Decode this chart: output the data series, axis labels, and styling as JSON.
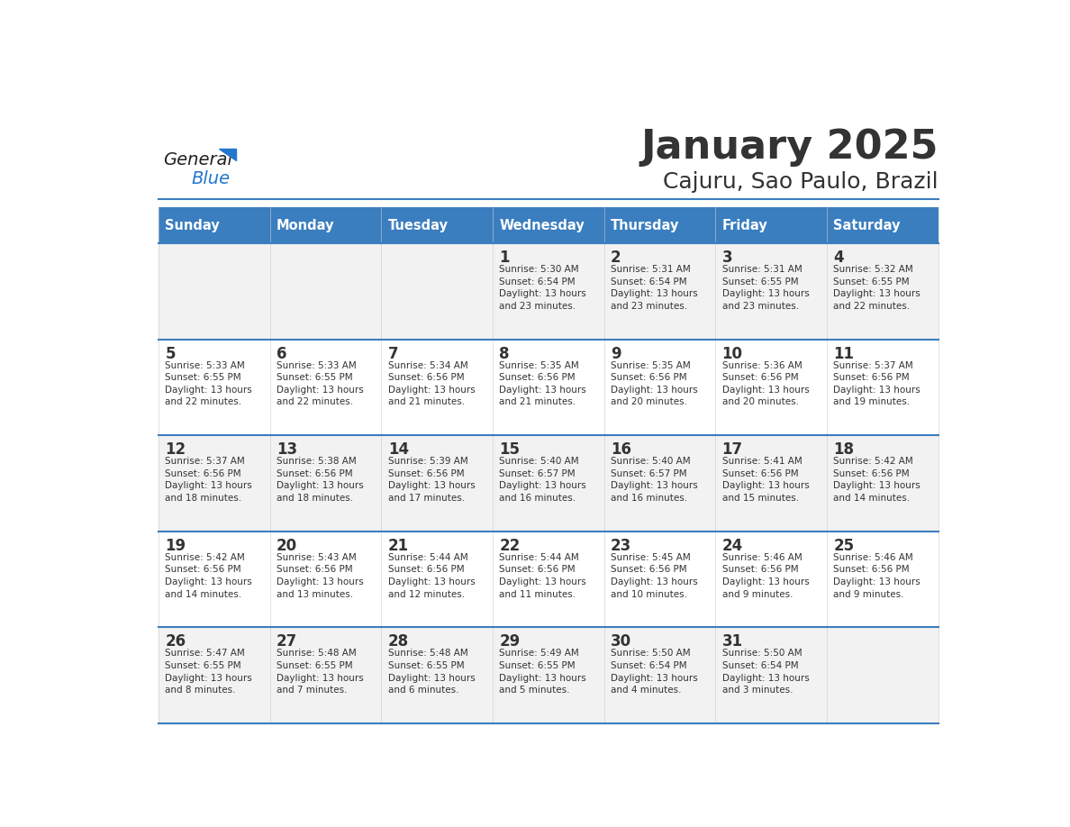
{
  "title": "January 2025",
  "subtitle": "Cajuru, Sao Paulo, Brazil",
  "header_bg": "#3a7ebf",
  "header_text_color": "#ffffff",
  "row_bg_odd": "#f2f2f2",
  "row_bg_even": "#ffffff",
  "border_color": "#3a7ebf",
  "text_color": "#333333",
  "days_of_week": [
    "Sunday",
    "Monday",
    "Tuesday",
    "Wednesday",
    "Thursday",
    "Friday",
    "Saturday"
  ],
  "calendar": [
    [
      {
        "day": "",
        "info": ""
      },
      {
        "day": "",
        "info": ""
      },
      {
        "day": "",
        "info": ""
      },
      {
        "day": "1",
        "info": "Sunrise: 5:30 AM\nSunset: 6:54 PM\nDaylight: 13 hours\nand 23 minutes."
      },
      {
        "day": "2",
        "info": "Sunrise: 5:31 AM\nSunset: 6:54 PM\nDaylight: 13 hours\nand 23 minutes."
      },
      {
        "day": "3",
        "info": "Sunrise: 5:31 AM\nSunset: 6:55 PM\nDaylight: 13 hours\nand 23 minutes."
      },
      {
        "day": "4",
        "info": "Sunrise: 5:32 AM\nSunset: 6:55 PM\nDaylight: 13 hours\nand 22 minutes."
      }
    ],
    [
      {
        "day": "5",
        "info": "Sunrise: 5:33 AM\nSunset: 6:55 PM\nDaylight: 13 hours\nand 22 minutes."
      },
      {
        "day": "6",
        "info": "Sunrise: 5:33 AM\nSunset: 6:55 PM\nDaylight: 13 hours\nand 22 minutes."
      },
      {
        "day": "7",
        "info": "Sunrise: 5:34 AM\nSunset: 6:56 PM\nDaylight: 13 hours\nand 21 minutes."
      },
      {
        "day": "8",
        "info": "Sunrise: 5:35 AM\nSunset: 6:56 PM\nDaylight: 13 hours\nand 21 minutes."
      },
      {
        "day": "9",
        "info": "Sunrise: 5:35 AM\nSunset: 6:56 PM\nDaylight: 13 hours\nand 20 minutes."
      },
      {
        "day": "10",
        "info": "Sunrise: 5:36 AM\nSunset: 6:56 PM\nDaylight: 13 hours\nand 20 minutes."
      },
      {
        "day": "11",
        "info": "Sunrise: 5:37 AM\nSunset: 6:56 PM\nDaylight: 13 hours\nand 19 minutes."
      }
    ],
    [
      {
        "day": "12",
        "info": "Sunrise: 5:37 AM\nSunset: 6:56 PM\nDaylight: 13 hours\nand 18 minutes."
      },
      {
        "day": "13",
        "info": "Sunrise: 5:38 AM\nSunset: 6:56 PM\nDaylight: 13 hours\nand 18 minutes."
      },
      {
        "day": "14",
        "info": "Sunrise: 5:39 AM\nSunset: 6:56 PM\nDaylight: 13 hours\nand 17 minutes."
      },
      {
        "day": "15",
        "info": "Sunrise: 5:40 AM\nSunset: 6:57 PM\nDaylight: 13 hours\nand 16 minutes."
      },
      {
        "day": "16",
        "info": "Sunrise: 5:40 AM\nSunset: 6:57 PM\nDaylight: 13 hours\nand 16 minutes."
      },
      {
        "day": "17",
        "info": "Sunrise: 5:41 AM\nSunset: 6:56 PM\nDaylight: 13 hours\nand 15 minutes."
      },
      {
        "day": "18",
        "info": "Sunrise: 5:42 AM\nSunset: 6:56 PM\nDaylight: 13 hours\nand 14 minutes."
      }
    ],
    [
      {
        "day": "19",
        "info": "Sunrise: 5:42 AM\nSunset: 6:56 PM\nDaylight: 13 hours\nand 14 minutes."
      },
      {
        "day": "20",
        "info": "Sunrise: 5:43 AM\nSunset: 6:56 PM\nDaylight: 13 hours\nand 13 minutes."
      },
      {
        "day": "21",
        "info": "Sunrise: 5:44 AM\nSunset: 6:56 PM\nDaylight: 13 hours\nand 12 minutes."
      },
      {
        "day": "22",
        "info": "Sunrise: 5:44 AM\nSunset: 6:56 PM\nDaylight: 13 hours\nand 11 minutes."
      },
      {
        "day": "23",
        "info": "Sunrise: 5:45 AM\nSunset: 6:56 PM\nDaylight: 13 hours\nand 10 minutes."
      },
      {
        "day": "24",
        "info": "Sunrise: 5:46 AM\nSunset: 6:56 PM\nDaylight: 13 hours\nand 9 minutes."
      },
      {
        "day": "25",
        "info": "Sunrise: 5:46 AM\nSunset: 6:56 PM\nDaylight: 13 hours\nand 9 minutes."
      }
    ],
    [
      {
        "day": "26",
        "info": "Sunrise: 5:47 AM\nSunset: 6:55 PM\nDaylight: 13 hours\nand 8 minutes."
      },
      {
        "day": "27",
        "info": "Sunrise: 5:48 AM\nSunset: 6:55 PM\nDaylight: 13 hours\nand 7 minutes."
      },
      {
        "day": "28",
        "info": "Sunrise: 5:48 AM\nSunset: 6:55 PM\nDaylight: 13 hours\nand 6 minutes."
      },
      {
        "day": "29",
        "info": "Sunrise: 5:49 AM\nSunset: 6:55 PM\nDaylight: 13 hours\nand 5 minutes."
      },
      {
        "day": "30",
        "info": "Sunrise: 5:50 AM\nSunset: 6:54 PM\nDaylight: 13 hours\nand 4 minutes."
      },
      {
        "day": "31",
        "info": "Sunrise: 5:50 AM\nSunset: 6:54 PM\nDaylight: 13 hours\nand 3 minutes."
      },
      {
        "day": "",
        "info": ""
      }
    ]
  ],
  "logo_general_color": "#222222",
  "logo_blue_color": "#2277cc",
  "title_fontsize": 32,
  "subtitle_fontsize": 18,
  "header_fontsize": 10.5,
  "day_num_fontsize": 12,
  "info_fontsize": 7.5
}
